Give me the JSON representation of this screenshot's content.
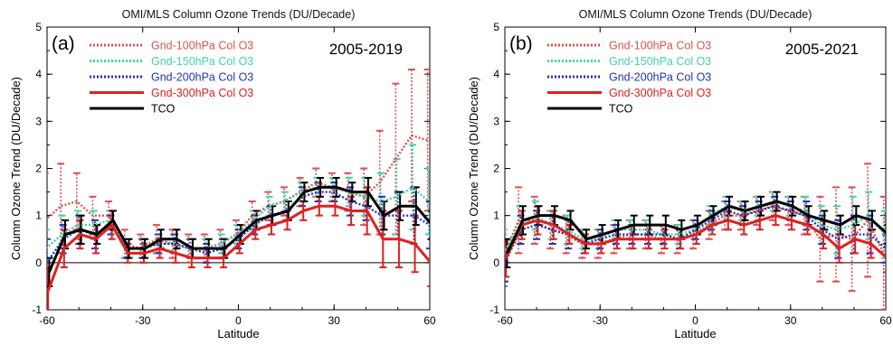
{
  "chart_data": [
    {
      "type": "line",
      "panel_label": "(a)",
      "period_label": "2005-2019",
      "title": "OMI/MLS Column Ozone Trends (DU/Decade)",
      "xlabel": "Latitude",
      "ylabel": "Column Ozone Trend (DU/Decade)",
      "xlim": [
        -60,
        60
      ],
      "ylim": [
        -1,
        5
      ],
      "xticks": [
        -60,
        -30,
        0,
        30,
        60
      ],
      "yticks": [
        -1,
        0,
        1,
        2,
        3,
        4,
        5
      ],
      "zero_line": true,
      "legend_position": "top-left",
      "x": [
        -60,
        -55,
        -50,
        -45,
        -40,
        -35,
        -30,
        -25,
        -20,
        -15,
        -10,
        -5,
        0,
        5,
        10,
        15,
        20,
        25,
        30,
        35,
        40,
        45,
        50,
        55,
        60
      ],
      "series": [
        {
          "name": "Gnd-100hPa Col O3",
          "color": "#d9534f",
          "style": "dotted",
          "values": [
            0.9,
            1.2,
            1.3,
            1.0,
            1.0,
            0.4,
            0.3,
            0.5,
            0.4,
            0.3,
            0.3,
            0.4,
            0.6,
            1.0,
            1.2,
            1.3,
            1.5,
            1.7,
            1.6,
            1.5,
            1.4,
            1.7,
            2.2,
            2.7,
            2.6
          ],
          "errors": [
            1.0,
            0.9,
            0.6,
            0.4,
            0.3,
            0.3,
            0.3,
            0.3,
            0.3,
            0.3,
            0.3,
            0.3,
            0.3,
            0.3,
            0.3,
            0.3,
            0.3,
            0.3,
            0.3,
            0.4,
            0.6,
            1.1,
            1.6,
            1.4,
            1.5
          ]
        },
        {
          "name": "Gnd-150hPa Col O3",
          "color": "#3fd6a8",
          "style": "dotted",
          "values": [
            0.3,
            0.6,
            0.8,
            0.8,
            0.9,
            0.3,
            0.3,
            0.4,
            0.4,
            0.3,
            0.3,
            0.4,
            0.6,
            0.9,
            1.2,
            1.3,
            1.5,
            1.6,
            1.6,
            1.5,
            1.4,
            1.3,
            1.4,
            1.6,
            1.3
          ],
          "errors": [
            0.4,
            0.4,
            0.3,
            0.3,
            0.2,
            0.2,
            0.2,
            0.2,
            0.2,
            0.2,
            0.2,
            0.2,
            0.2,
            0.2,
            0.2,
            0.2,
            0.2,
            0.2,
            0.2,
            0.3,
            0.4,
            0.6,
            0.8,
            0.9,
            0.7
          ]
        },
        {
          "name": "Gnd-200hPa Col O3",
          "color": "#2233bb",
          "style": "dotted",
          "values": [
            0.0,
            0.5,
            0.7,
            0.6,
            0.8,
            0.3,
            0.3,
            0.4,
            0.4,
            0.3,
            0.2,
            0.3,
            0.5,
            0.8,
            1.0,
            1.1,
            1.4,
            1.5,
            1.5,
            1.3,
            1.2,
            1.0,
            1.0,
            1.0,
            0.8
          ],
          "errors": [
            0.5,
            0.3,
            0.3,
            0.3,
            0.2,
            0.2,
            0.2,
            0.2,
            0.2,
            0.2,
            0.2,
            0.2,
            0.2,
            0.2,
            0.2,
            0.2,
            0.2,
            0.2,
            0.2,
            0.3,
            0.3,
            0.4,
            0.5,
            0.6,
            0.5
          ]
        },
        {
          "name": "Gnd-300hPa Col O3",
          "color": "#e02020",
          "style": "solid",
          "values": [
            -0.6,
            0.3,
            0.6,
            0.5,
            0.8,
            0.2,
            0.2,
            0.3,
            0.2,
            0.1,
            0.1,
            0.1,
            0.4,
            0.7,
            0.8,
            0.9,
            1.1,
            1.2,
            1.2,
            1.1,
            1.1,
            0.5,
            0.5,
            0.4,
            0.0
          ],
          "errors": [
            0.5,
            0.4,
            0.3,
            0.3,
            0.3,
            0.2,
            0.2,
            0.2,
            0.2,
            0.2,
            0.2,
            0.2,
            0.2,
            0.2,
            0.2,
            0.2,
            0.2,
            0.2,
            0.2,
            0.3,
            0.5,
            0.6,
            0.6,
            0.6,
            0.5
          ]
        },
        {
          "name": "TCO",
          "color": "#000000",
          "style": "solid",
          "values": [
            -0.2,
            0.6,
            0.7,
            0.6,
            0.9,
            0.3,
            0.3,
            0.5,
            0.5,
            0.3,
            0.3,
            0.3,
            0.6,
            0.9,
            1.0,
            1.1,
            1.5,
            1.6,
            1.6,
            1.5,
            1.5,
            1.0,
            1.2,
            1.2,
            0.8
          ],
          "errors": [
            0.3,
            0.3,
            0.3,
            0.2,
            0.2,
            0.2,
            0.2,
            0.2,
            0.2,
            0.2,
            0.2,
            0.2,
            0.2,
            0.2,
            0.2,
            0.2,
            0.2,
            0.2,
            0.2,
            0.2,
            0.3,
            0.3,
            0.3,
            0.4,
            0.3
          ]
        }
      ]
    },
    {
      "type": "line",
      "panel_label": "(b)",
      "period_label": "2005-2021",
      "title": "OMI/MLS Column Ozone Trends (DU/Decade)",
      "xlabel": "Latitude",
      "ylabel": "Column Ozone Trend (DU/Decade)",
      "xlim": [
        -60,
        60
      ],
      "ylim": [
        -1,
        5
      ],
      "xticks": [
        -60,
        -30,
        0,
        30,
        60
      ],
      "yticks": [
        -1,
        0,
        1,
        2,
        3,
        4,
        5
      ],
      "zero_line": true,
      "legend_position": "top-left",
      "x": [
        -60,
        -55,
        -50,
        -45,
        -40,
        -35,
        -30,
        -25,
        -20,
        -15,
        -10,
        -5,
        0,
        5,
        10,
        15,
        20,
        25,
        30,
        35,
        40,
        45,
        50,
        55,
        60
      ],
      "series": [
        {
          "name": "Gnd-100hPa Col O3",
          "color": "#d9534f",
          "style": "dotted",
          "values": [
            0.1,
            0.9,
            0.9,
            0.7,
            0.6,
            0.4,
            0.4,
            0.5,
            0.6,
            0.6,
            0.5,
            0.5,
            0.6,
            0.8,
            1.0,
            1.0,
            1.1,
            1.2,
            1.1,
            1.0,
            0.5,
            0.6,
            0.5,
            0.9,
            0.2
          ],
          "errors": [
            0.5,
            0.7,
            0.5,
            0.4,
            0.4,
            0.3,
            0.3,
            0.3,
            0.3,
            0.3,
            0.3,
            0.3,
            0.3,
            0.3,
            0.3,
            0.3,
            0.3,
            0.3,
            0.3,
            0.4,
            0.9,
            1.0,
            1.1,
            1.2,
            1.2
          ]
        },
        {
          "name": "Gnd-150hPa Col O3",
          "color": "#3fd6a8",
          "style": "dotted",
          "values": [
            0.2,
            0.8,
            1.0,
            0.8,
            0.7,
            0.5,
            0.5,
            0.7,
            0.7,
            0.7,
            0.6,
            0.6,
            0.7,
            1.0,
            1.2,
            1.1,
            1.2,
            1.3,
            1.2,
            1.1,
            0.8,
            0.7,
            0.8,
            1.0,
            0.6
          ],
          "errors": [
            0.5,
            0.4,
            0.3,
            0.3,
            0.3,
            0.2,
            0.2,
            0.2,
            0.2,
            0.2,
            0.2,
            0.2,
            0.2,
            0.2,
            0.2,
            0.2,
            0.2,
            0.2,
            0.2,
            0.3,
            0.4,
            0.5,
            0.6,
            0.5,
            0.5
          ]
        },
        {
          "name": "Gnd-200hPa Col O3",
          "color": "#2233bb",
          "style": "dotted",
          "values": [
            0.0,
            0.7,
            0.8,
            0.7,
            0.6,
            0.4,
            0.5,
            0.6,
            0.6,
            0.6,
            0.6,
            0.5,
            0.7,
            0.9,
            1.1,
            1.0,
            1.1,
            1.2,
            1.1,
            1.0,
            0.7,
            0.5,
            0.6,
            0.6,
            0.3
          ],
          "errors": [
            0.4,
            0.3,
            0.3,
            0.3,
            0.3,
            0.2,
            0.2,
            0.2,
            0.2,
            0.2,
            0.2,
            0.2,
            0.2,
            0.2,
            0.2,
            0.2,
            0.2,
            0.2,
            0.2,
            0.3,
            0.3,
            0.4,
            0.4,
            0.4,
            0.3
          ]
        },
        {
          "name": "Gnd-300hPa Col O3",
          "color": "#e02020",
          "style": "solid",
          "values": [
            0.1,
            0.8,
            0.9,
            0.8,
            0.6,
            0.4,
            0.4,
            0.5,
            0.5,
            0.5,
            0.5,
            0.5,
            0.6,
            0.8,
            0.9,
            0.8,
            0.9,
            1.0,
            0.9,
            0.8,
            0.6,
            0.3,
            0.5,
            0.4,
            0.1
          ],
          "errors": [
            0.4,
            0.3,
            0.3,
            0.3,
            0.2,
            0.2,
            0.2,
            0.2,
            0.2,
            0.2,
            0.2,
            0.2,
            0.2,
            0.2,
            0.2,
            0.2,
            0.2,
            0.2,
            0.2,
            0.2,
            0.3,
            0.3,
            0.3,
            0.3,
            0.3
          ]
        },
        {
          "name": "TCO",
          "color": "#000000",
          "style": "solid",
          "values": [
            0.2,
            0.9,
            1.0,
            1.0,
            0.9,
            0.5,
            0.6,
            0.7,
            0.8,
            0.8,
            0.8,
            0.7,
            0.8,
            1.0,
            1.2,
            1.1,
            1.2,
            1.3,
            1.2,
            1.0,
            0.9,
            0.8,
            1.0,
            0.9,
            0.6
          ],
          "errors": [
            0.3,
            0.3,
            0.2,
            0.2,
            0.2,
            0.2,
            0.2,
            0.2,
            0.2,
            0.2,
            0.2,
            0.2,
            0.2,
            0.2,
            0.2,
            0.2,
            0.2,
            0.2,
            0.2,
            0.2,
            0.2,
            0.2,
            0.2,
            0.2,
            0.2
          ]
        }
      ]
    }
  ]
}
